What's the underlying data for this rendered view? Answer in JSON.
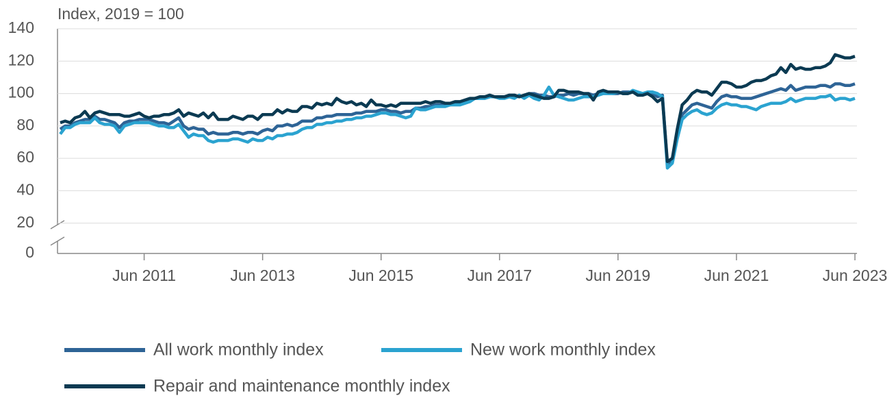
{
  "chart_data": {
    "type": "line",
    "y_label": "Index, 2019 = 100",
    "categories": [
      "Jan 2010",
      "Feb 2010",
      "Mar 2010",
      "Apr 2010",
      "May 2010",
      "Jun 2010",
      "Jul 2010",
      "Aug 2010",
      "Sep 2010",
      "Oct 2010",
      "Nov 2010",
      "Dec 2010",
      "Jan 2011",
      "Feb 2011",
      "Mar 2011",
      "Apr 2011",
      "May 2011",
      "Jun 2011",
      "Jul 2011",
      "Aug 2011",
      "Sep 2011",
      "Oct 2011",
      "Nov 2011",
      "Dec 2011",
      "Jan 2012",
      "Feb 2012",
      "Mar 2012",
      "Apr 2012",
      "May 2012",
      "Jun 2012",
      "Jul 2012",
      "Aug 2012",
      "Sep 2012",
      "Oct 2012",
      "Nov 2012",
      "Dec 2012",
      "Jan 2013",
      "Feb 2013",
      "Mar 2013",
      "Apr 2013",
      "May 2013",
      "Jun 2013",
      "Jul 2013",
      "Aug 2013",
      "Sep 2013",
      "Oct 2013",
      "Nov 2013",
      "Dec 2013",
      "Jan 2014",
      "Feb 2014",
      "Mar 2014",
      "Apr 2014",
      "May 2014",
      "Jun 2014",
      "Jul 2014",
      "Aug 2014",
      "Sep 2014",
      "Oct 2014",
      "Nov 2014",
      "Dec 2014",
      "Jan 2015",
      "Feb 2015",
      "Mar 2015",
      "Apr 2015",
      "May 2015",
      "Jun 2015",
      "Jul 2015",
      "Aug 2015",
      "Sep 2015",
      "Oct 2015",
      "Nov 2015",
      "Dec 2015",
      "Jan 2016",
      "Feb 2016",
      "Mar 2016",
      "Apr 2016",
      "May 2016",
      "Jun 2016",
      "Jul 2016",
      "Aug 2016",
      "Sep 2016",
      "Oct 2016",
      "Nov 2016",
      "Dec 2016",
      "Jan 2017",
      "Feb 2017",
      "Mar 2017",
      "Apr 2017",
      "May 2017",
      "Jun 2017",
      "Jul 2017",
      "Aug 2017",
      "Sep 2017",
      "Oct 2017",
      "Nov 2017",
      "Dec 2017",
      "Jan 2018",
      "Feb 2018",
      "Mar 2018",
      "Apr 2018",
      "May 2018",
      "Jun 2018",
      "Jul 2018",
      "Aug 2018",
      "Sep 2018",
      "Oct 2018",
      "Nov 2018",
      "Dec 2018",
      "Jan 2019",
      "Feb 2019",
      "Mar 2019",
      "Apr 2019",
      "May 2019",
      "Jun 2019",
      "Jul 2019",
      "Aug 2019",
      "Sep 2019",
      "Oct 2019",
      "Nov 2019",
      "Dec 2019",
      "Jan 2020",
      "Feb 2020",
      "Mar 2020",
      "Apr 2020",
      "May 2020",
      "Jun 2020",
      "Jul 2020",
      "Aug 2020",
      "Sep 2020",
      "Oct 2020",
      "Nov 2020",
      "Dec 2020",
      "Jan 2021",
      "Feb 2021",
      "Mar 2021",
      "Apr 2021",
      "May 2021",
      "Jun 2021",
      "Jul 2021",
      "Aug 2021",
      "Sep 2021",
      "Oct 2021",
      "Nov 2021",
      "Dec 2021",
      "Jan 2022",
      "Feb 2022",
      "Mar 2022",
      "Apr 2022",
      "May 2022",
      "Jun 2022",
      "Jul 2022",
      "Aug 2022",
      "Sep 2022",
      "Oct 2022",
      "Nov 2022",
      "Dec 2022",
      "Jan 2023",
      "Feb 2023",
      "Mar 2023",
      "Apr 2023",
      "May 2023",
      "Jun 2023"
    ],
    "xticks": [
      "Jun 2011",
      "Jun 2013",
      "Jun 2015",
      "Jun 2017",
      "Jun 2019",
      "Jun 2021",
      "Jun 2023"
    ],
    "ylim": [
      0,
      140
    ],
    "yticks": [
      0,
      20,
      40,
      60,
      80,
      100,
      120,
      140
    ],
    "grid": true,
    "series": [
      {
        "name": "All work monthly index",
        "color": "#2e6496",
        "values": [
          78,
          80,
          80,
          82,
          83,
          84,
          84,
          86,
          84,
          84,
          83,
          82,
          79,
          82,
          83,
          83,
          84,
          84,
          84,
          83,
          82,
          82,
          81,
          83,
          85,
          80,
          78,
          79,
          78,
          78,
          75,
          76,
          75,
          75,
          75,
          76,
          76,
          75,
          76,
          76,
          75,
          77,
          78,
          77,
          80,
          80,
          81,
          80,
          81,
          83,
          83,
          83,
          85,
          85,
          86,
          86,
          87,
          87,
          87,
          87,
          88,
          88,
          89,
          89,
          89,
          90,
          90,
          89,
          89,
          88,
          89,
          89,
          91,
          91,
          92,
          92,
          93,
          93,
          93,
          93,
          94,
          94,
          95,
          96,
          97,
          97,
          97,
          98,
          98,
          98,
          98,
          99,
          99,
          98,
          99,
          100,
          100,
          99,
          99,
          98,
          98,
          99,
          99,
          100,
          99,
          100,
          100,
          100,
          99,
          100,
          101,
          101,
          100,
          100,
          101,
          101,
          101,
          100,
          100,
          100,
          100,
          98,
          99,
          56,
          59,
          75,
          87,
          90,
          93,
          94,
          93,
          92,
          91,
          95,
          98,
          99,
          98,
          98,
          97,
          97,
          97,
          98,
          99,
          100,
          101,
          102,
          103,
          102,
          105,
          102,
          103,
          104,
          104,
          104,
          105,
          105,
          104,
          106,
          106,
          105,
          105,
          106
        ]
      },
      {
        "name": "New work monthly index",
        "color": "#2ba3d0",
        "values": [
          75,
          79,
          79,
          81,
          82,
          82,
          82,
          85,
          82,
          81,
          81,
          80,
          76,
          80,
          81,
          82,
          82,
          82,
          82,
          81,
          80,
          80,
          79,
          79,
          81,
          77,
          73,
          75,
          74,
          74,
          71,
          70,
          71,
          71,
          71,
          72,
          72,
          71,
          70,
          72,
          71,
          71,
          73,
          72,
          74,
          74,
          75,
          75,
          76,
          78,
          79,
          79,
          81,
          81,
          82,
          82,
          83,
          83,
          84,
          84,
          85,
          85,
          86,
          86,
          87,
          88,
          88,
          87,
          87,
          86,
          85,
          86,
          91,
          90,
          90,
          91,
          92,
          92,
          92,
          93,
          93,
          93,
          94,
          95,
          97,
          97,
          97,
          98,
          98,
          97,
          97,
          98,
          97,
          99,
          97,
          99,
          97,
          96,
          99,
          104,
          99,
          98,
          97,
          96,
          96,
          97,
          98,
          98,
          98,
          99,
          100,
          100,
          100,
          101,
          100,
          100,
          102,
          101,
          100,
          101,
          101,
          100,
          98,
          54,
          57,
          72,
          84,
          87,
          89,
          90,
          88,
          87,
          88,
          91,
          93,
          94,
          93,
          93,
          92,
          92,
          91,
          90,
          92,
          93,
          94,
          94,
          94,
          95,
          97,
          95,
          96,
          97,
          97,
          97,
          98,
          98,
          99,
          96,
          97,
          97,
          96,
          97
        ]
      },
      {
        "name": "Repair and maintenance monthly index",
        "color": "#0b3a52",
        "values": [
          82,
          83,
          82,
          85,
          86,
          89,
          85,
          88,
          89,
          88,
          87,
          87,
          87,
          86,
          86,
          87,
          88,
          86,
          85,
          86,
          86,
          87,
          87,
          88,
          90,
          86,
          88,
          87,
          86,
          88,
          85,
          88,
          84,
          84,
          84,
          86,
          85,
          84,
          86,
          86,
          84,
          87,
          87,
          87,
          90,
          88,
          90,
          89,
          89,
          92,
          92,
          91,
          94,
          93,
          94,
          93,
          97,
          95,
          94,
          95,
          93,
          94,
          92,
          96,
          93,
          93,
          92,
          93,
          92,
          94,
          94,
          94,
          94,
          94,
          95,
          94,
          95,
          95,
          94,
          94,
          95,
          95,
          96,
          97,
          97,
          98,
          98,
          99,
          98,
          98,
          98,
          99,
          99,
          98,
          99,
          100,
          99,
          98,
          97,
          97,
          98,
          102,
          102,
          101,
          101,
          101,
          100,
          100,
          96,
          101,
          102,
          101,
          101,
          101,
          100,
          100,
          101,
          99,
          99,
          100,
          98,
          95,
          97,
          58,
          60,
          78,
          93,
          96,
          100,
          102,
          101,
          101,
          99,
          103,
          107,
          107,
          106,
          104,
          104,
          105,
          107,
          108,
          108,
          109,
          111,
          112,
          116,
          113,
          118,
          115,
          116,
          115,
          115,
          116,
          116,
          117,
          119,
          124,
          123,
          122,
          122,
          123
        ]
      }
    ]
  }
}
